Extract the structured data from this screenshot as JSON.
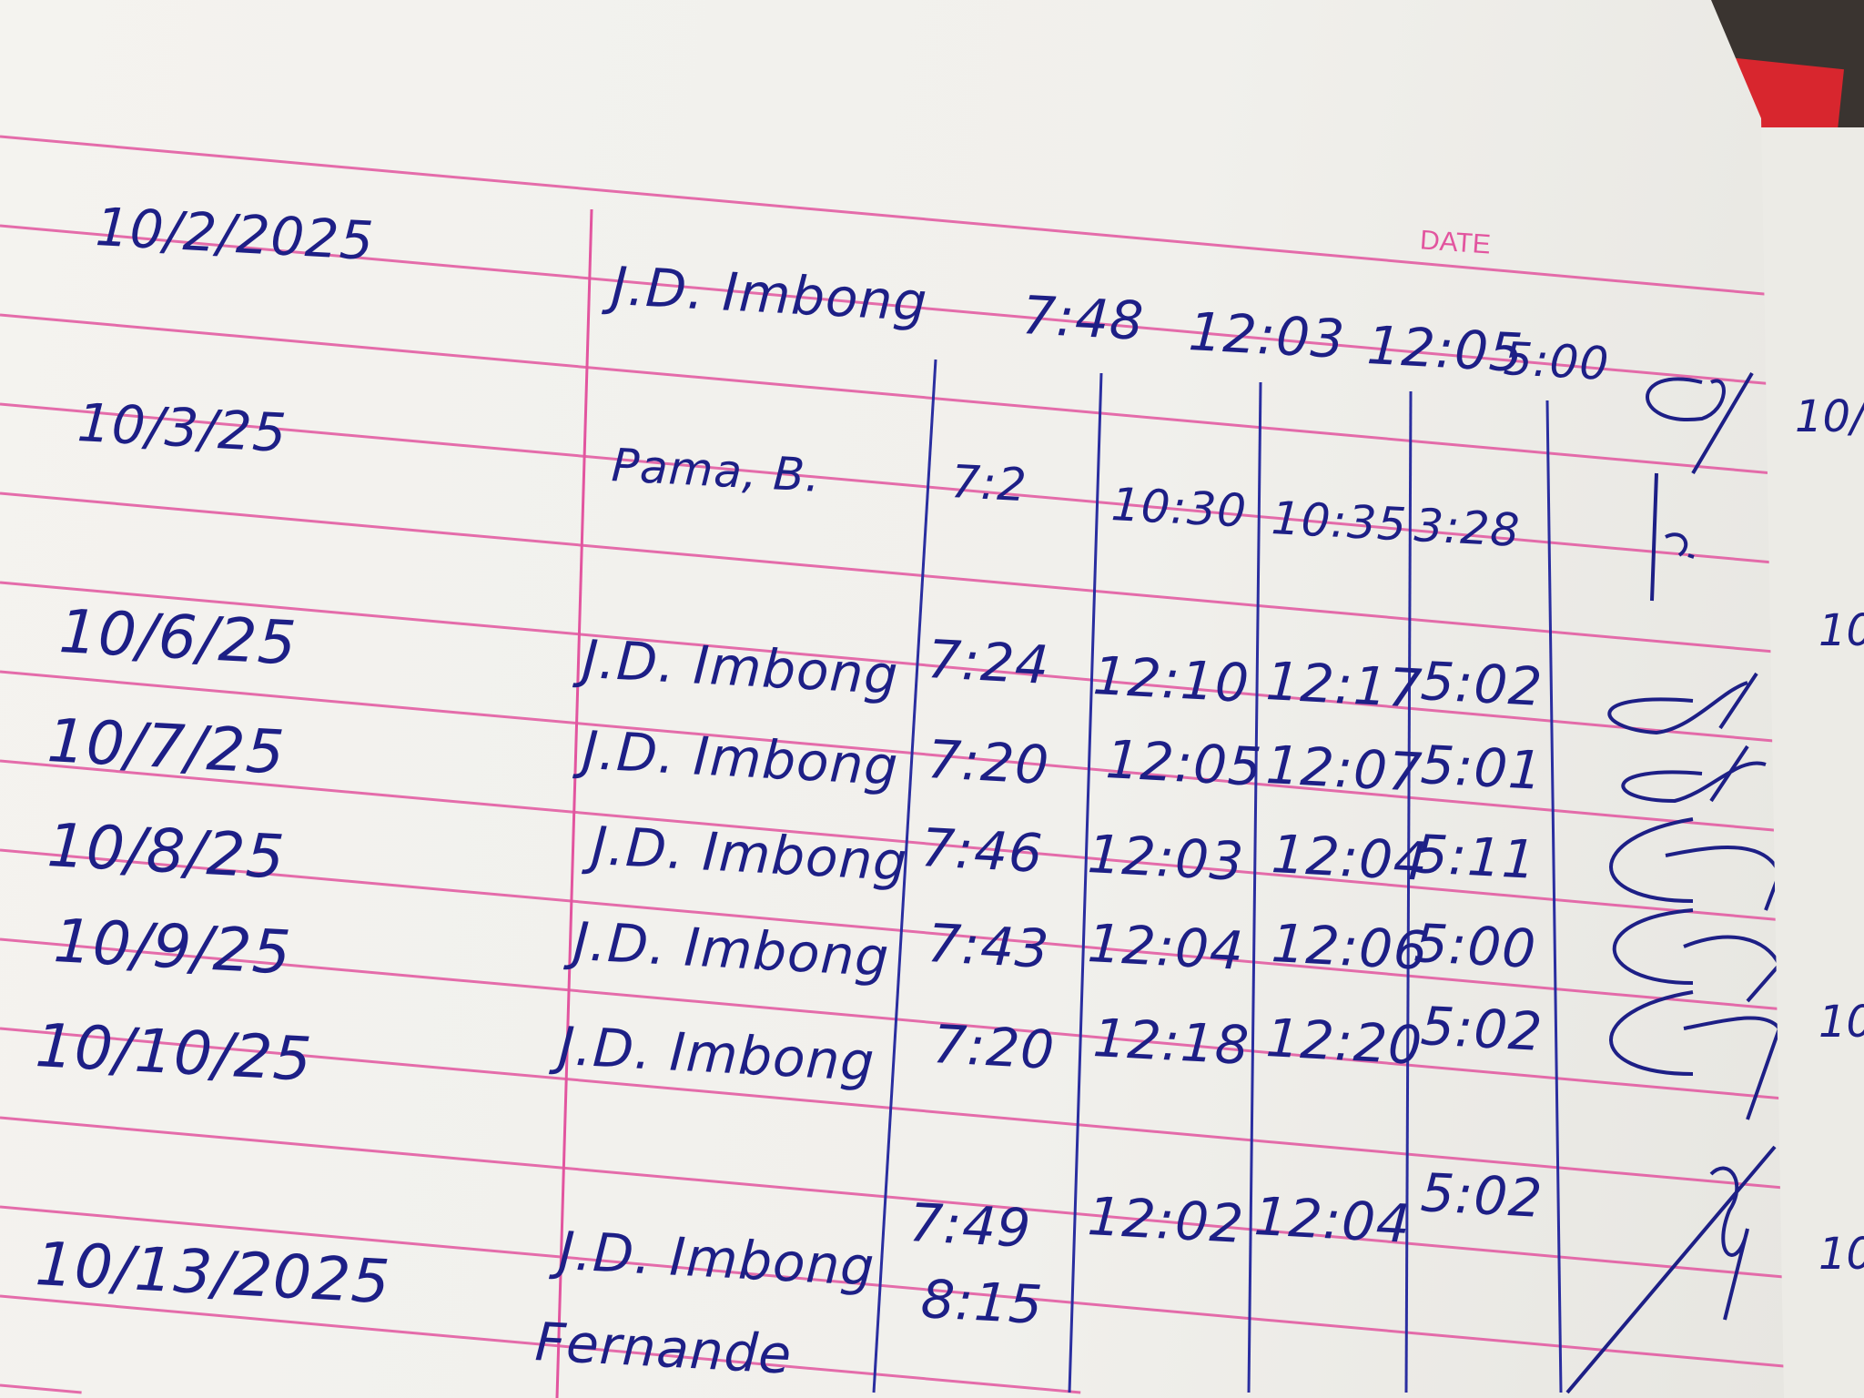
{
  "printed_label": "DATE",
  "rows": [
    {
      "date": "10/2/2025",
      "name": "J.D. Imbong",
      "time_in_am": "7:48",
      "time_out_am": "12:03",
      "time_in_pm": "12:05",
      "time_out_pm": "5:00"
    },
    {
      "date": "10/3/25",
      "name": "Pama, B.",
      "time_in_am": "7:2",
      "time_out_am": "10:30",
      "time_in_pm": "10:35",
      "time_out_pm": "3:28"
    },
    {
      "date": "10/6/25",
      "name": "J.D. Imbong",
      "time_in_am": "7:24",
      "time_out_am": "12:10",
      "time_in_pm": "12:17",
      "time_out_pm": "5:02"
    },
    {
      "date": "10/7/25",
      "name": "J.D. Imbong",
      "time_in_am": "7:20",
      "time_out_am": "12:05",
      "time_in_pm": "12:07",
      "time_out_pm": "5:01"
    },
    {
      "date": "10/8/25",
      "name": "J.D. Imbong",
      "time_in_am": "7:46",
      "time_out_am": "12:03",
      "time_in_pm": "12:04",
      "time_out_pm": "5:11"
    },
    {
      "date": "10/9/25",
      "name": "J.D. Imbong",
      "time_in_am": "7:43",
      "time_out_am": "12:04",
      "time_in_pm": "12:06",
      "time_out_pm": "5:00"
    },
    {
      "date": "10/10/25",
      "name": "J.D. Imbong",
      "time_in_am": "7:20",
      "time_out_am": "12:18",
      "time_in_pm": "12:20",
      "time_out_pm": "5:02"
    },
    {
      "date": "10/13/2025",
      "name": "J.D. Imbong",
      "time_in_am": "7:49",
      "time_out_am": "12:02",
      "time_in_pm": "12:04",
      "time_out_pm": "5:02"
    },
    {
      "name": "Fernande",
      "time_in_am": "8:15"
    }
  ],
  "right_page_fragments": [
    "10/",
    "10",
    "10",
    "10"
  ],
  "ink_color": "#1d1f86",
  "rule_color": "#e2559f"
}
